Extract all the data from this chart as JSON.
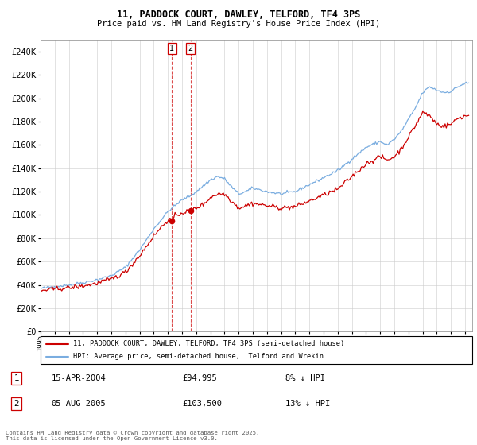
{
  "title": "11, PADDOCK COURT, DAWLEY, TELFORD, TF4 3PS",
  "subtitle": "Price paid vs. HM Land Registry's House Price Index (HPI)",
  "legend_line1": "11, PADDOCK COURT, DAWLEY, TELFORD, TF4 3PS (semi-detached house)",
  "legend_line2": "HPI: Average price, semi-detached house,  Telford and Wrekin",
  "transaction1_date": "15-APR-2004",
  "transaction1_price": "£94,995",
  "transaction1_info": "8% ↓ HPI",
  "transaction2_date": "05-AUG-2005",
  "transaction2_price": "£103,500",
  "transaction2_info": "13% ↓ HPI",
  "footer": "Contains HM Land Registry data © Crown copyright and database right 2025.\nThis data is licensed under the Open Government Licence v3.0.",
  "red_color": "#cc0000",
  "blue_color": "#7aade0",
  "t1_date_num": 2004.29,
  "t2_date_num": 2005.59,
  "t1_price": 94995,
  "t2_price": 103500,
  "ylim_min": 0,
  "ylim_max": 250000,
  "xlim_min": 1995,
  "xlim_max": 2025.5,
  "yticks": [
    0,
    20000,
    40000,
    60000,
    80000,
    100000,
    120000,
    140000,
    160000,
    180000,
    200000,
    220000,
    240000
  ],
  "xticks": [
    1995,
    1996,
    1997,
    1998,
    1999,
    2000,
    2001,
    2002,
    2003,
    2004,
    2005,
    2006,
    2007,
    2008,
    2009,
    2010,
    2011,
    2012,
    2013,
    2014,
    2015,
    2016,
    2017,
    2018,
    2019,
    2020,
    2021,
    2022,
    2023,
    2024,
    2025
  ]
}
